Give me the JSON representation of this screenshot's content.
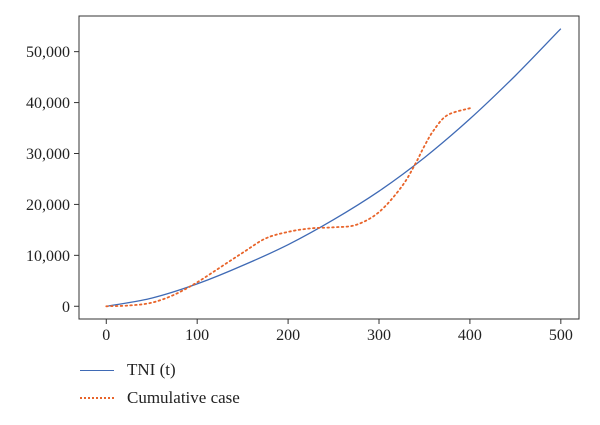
{
  "chart_data": {
    "type": "line",
    "title": "",
    "xlabel": "",
    "ylabel": "",
    "xlim": [
      -30,
      520
    ],
    "ylim": [
      -2500,
      57000
    ],
    "x_ticks": [
      0,
      100,
      200,
      300,
      400,
      500
    ],
    "x_tick_labels": [
      "0",
      "100",
      "200",
      "300",
      "400",
      "500"
    ],
    "y_ticks": [
      0,
      10000,
      20000,
      30000,
      40000,
      50000
    ],
    "y_tick_labels": [
      "0",
      "10,000",
      "20,000",
      "30,000",
      "40,000",
      "50,000"
    ],
    "grid": false,
    "legend_position": "below",
    "series": [
      {
        "name": "TNI (t)",
        "color": "#3f6ab5",
        "style": "solid",
        "x": [
          0,
          50,
          100,
          150,
          200,
          250,
          300,
          350,
          400,
          450,
          500
        ],
        "y": [
          0,
          1600,
          4400,
          8000,
          12100,
          17000,
          22600,
          29200,
          36800,
          45300,
          54500
        ]
      },
      {
        "name": "Cumulative case",
        "color": "#e8642a",
        "style": "dotted",
        "x": [
          0,
          25,
          50,
          75,
          100,
          125,
          150,
          175,
          200,
          225,
          250,
          275,
          300,
          325,
          340,
          350,
          360,
          375,
          400
        ],
        "y": [
          0,
          150,
          700,
          2300,
          4700,
          7600,
          10500,
          13300,
          14600,
          15300,
          15500,
          16000,
          18500,
          23500,
          28000,
          31500,
          34500,
          37500,
          38900
        ]
      }
    ]
  }
}
